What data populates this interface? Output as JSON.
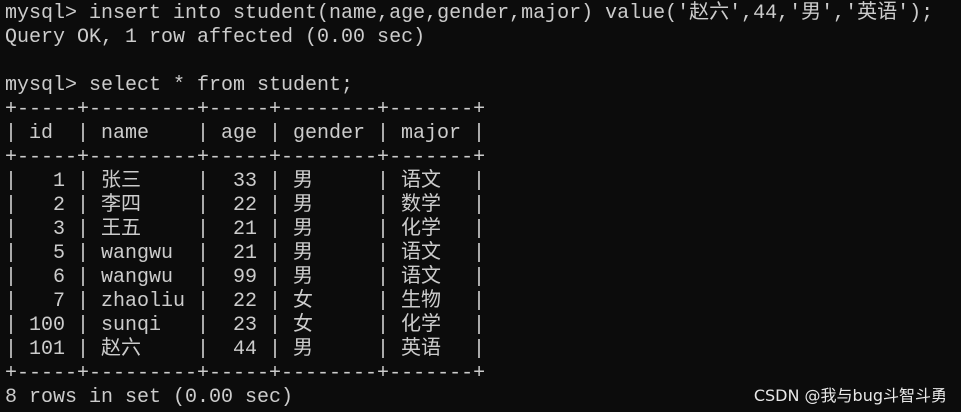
{
  "terminal": {
    "lines_top": [
      "mysql> insert into student(name,age,gender,major) value('赵六',44,'男','英语');",
      "Query OK, 1 row affected (0.00 sec)",
      "",
      "mysql> select * from student;"
    ],
    "table": {
      "columns": [
        "id",
        "name",
        "age",
        "gender",
        "major"
      ],
      "rows": [
        [
          "1",
          "张三",
          "33",
          "男",
          "语文"
        ],
        [
          "2",
          "李四",
          "22",
          "男",
          "数学"
        ],
        [
          "3",
          "王五",
          "21",
          "男",
          "化学"
        ],
        [
          "5",
          "wangwu",
          "21",
          "男",
          "语文"
        ],
        [
          "6",
          "wangwu",
          "99",
          "男",
          "语文"
        ],
        [
          "7",
          "zhaoliu",
          "22",
          "女",
          "生物"
        ],
        [
          "100",
          "sunqi",
          "23",
          "女",
          "化学"
        ],
        [
          "101",
          "赵六",
          "44",
          "男",
          "英语"
        ]
      ]
    },
    "footer": "8 rows in set (0.00 sec)"
  },
  "watermark": "CSDN @我与bug斗智斗勇",
  "colors": {
    "background": "#0c0c0c",
    "text": "#cccccc"
  }
}
